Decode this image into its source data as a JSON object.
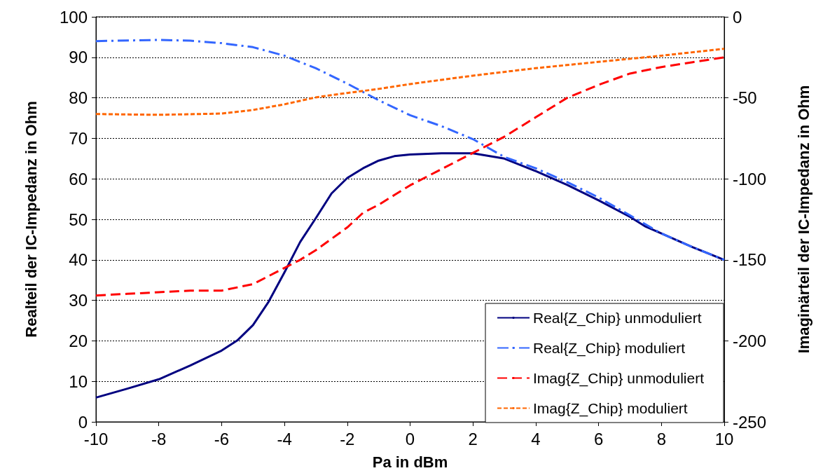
{
  "chart_data": {
    "type": "line",
    "xlabel": "Pa in dBm",
    "ylabel": "Realteil der IC-Impedanz in Ohm",
    "y2label": "Imaginärteil der IC-Impedanz in Ohm",
    "xlim": [
      -10,
      10
    ],
    "xticks": [
      -10,
      -8,
      -6,
      -4,
      -2,
      0,
      2,
      4,
      6,
      8,
      10
    ],
    "ylim": [
      0,
      100
    ],
    "yticks": [
      0,
      10,
      20,
      30,
      40,
      50,
      60,
      70,
      80,
      90,
      100
    ],
    "y2lim": [
      -250,
      0
    ],
    "y2ticks": [
      -250,
      -200,
      -150,
      -100,
      -50,
      0
    ],
    "grid": "y",
    "legend": "bottom right",
    "marker": "none",
    "series": [
      {
        "name": "Real{Z_Chip} unmoduliert",
        "color": "#000080",
        "line_style": "solid",
        "x": [
          -10,
          -9,
          -8,
          -7,
          -6,
          -5.5,
          -5,
          -4.5,
          -4,
          -3.5,
          -3,
          -2.5,
          -2,
          -1.5,
          -1,
          -0.5,
          0,
          1,
          2,
          3,
          4,
          5,
          6,
          7,
          7.5,
          8,
          9,
          10
        ],
        "values": [
          6,
          8.2,
          10.5,
          13.9,
          17.6,
          20.1,
          23.9,
          29.7,
          36.9,
          44.4,
          50.3,
          56.4,
          60.2,
          62.6,
          64.5,
          65.6,
          66,
          66.3,
          66.3,
          65,
          61.9,
          58.5,
          54.7,
          50.6,
          48.2,
          46.5,
          43.1,
          40
        ]
      },
      {
        "name": "Real{Z_Chip} moduliert",
        "color": "#3366ff",
        "line_style": "dashdot",
        "x": [
          -10,
          -8,
          -7,
          -6,
          -5,
          -4,
          -3,
          -2,
          -1,
          0,
          1,
          2,
          3,
          4,
          5,
          6,
          7,
          8,
          9,
          10
        ],
        "values": [
          94,
          94.3,
          94.1,
          93.5,
          92.5,
          90.4,
          87.3,
          83.5,
          79.4,
          75.7,
          73,
          69.8,
          65.4,
          62.6,
          59.2,
          55.4,
          51,
          46.5,
          43.1,
          40
        ]
      },
      {
        "name": "Imag{Z_Chip} unmoduliert",
        "color": "#ff0000",
        "line_style": "dashed",
        "axis": "y2",
        "x": [
          -10,
          -9,
          -8,
          -7,
          -6,
          -5.5,
          -5,
          -4.5,
          -4,
          -3.5,
          -3,
          -2.5,
          -2,
          -1.5,
          -1,
          -0.5,
          0,
          1,
          2,
          3,
          4,
          5,
          6,
          7,
          8,
          9,
          10
        ],
        "values": [
          -172,
          -171,
          -170,
          -169,
          -169,
          -167,
          -165,
          -160,
          -155,
          -150,
          -144,
          -137,
          -130,
          -121,
          -116,
          -110,
          -104,
          -94,
          -84,
          -74,
          -62,
          -50,
          -42,
          -35,
          -31,
          -28,
          -25
        ]
      },
      {
        "name": "Imag{Z_Chip} moduliert",
        "color": "#ff6600",
        "line_style": "dotted",
        "axis": "y2",
        "x": [
          -10,
          -8,
          -6,
          -5,
          -4,
          -3,
          -2,
          -1,
          0,
          2,
          4,
          6,
          8,
          10
        ],
        "values": [
          -60,
          -60.5,
          -59.7,
          -57.5,
          -54,
          -49.7,
          -47,
          -44.5,
          -41.5,
          -36.3,
          -31.7,
          -27.8,
          -24,
          -19.7
        ]
      }
    ]
  }
}
